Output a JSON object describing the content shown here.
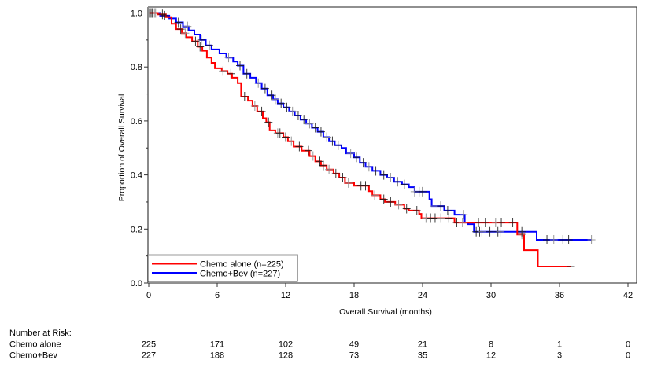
{
  "chart_data": {
    "type": "line",
    "subtype": "kaplan-meier",
    "title": "",
    "xlabel": "Overall Survival (months)",
    "ylabel": "Proportion of Overall Survival",
    "xlim": [
      0,
      42.8
    ],
    "ylim": [
      0,
      1.02
    ],
    "xticks": [
      0,
      6,
      12,
      18,
      24,
      30,
      36,
      42
    ],
    "xtick_labels": [
      "0",
      "6",
      "12",
      "18",
      "24",
      "30",
      "36",
      "42"
    ],
    "yticks": [
      0,
      0.2,
      0.4,
      0.6,
      0.8,
      1.0
    ],
    "ytick_labels": [
      "0.0",
      "0.2",
      "0.4",
      "0.6",
      "0.8",
      "1.0"
    ],
    "yminor_ticks": [
      0.1,
      0.3,
      0.5,
      0.7,
      0.9
    ],
    "grid": false,
    "censor_marker": "+",
    "legend": {
      "placement": "bottom-left",
      "entries": [
        "Chemo alone (n=225)",
        "Chemo+Bev (n=227)"
      ]
    },
    "series": [
      {
        "name": "Chemo alone",
        "n": 225,
        "legend_label": "Chemo alone (n=225)",
        "color": "#ff0000",
        "steps": {
          "t": [
            0.8,
            1.5,
            2.0,
            2.4,
            2.9,
            3.3,
            3.8,
            4.3,
            4.7,
            5.1,
            5.5,
            5.8,
            6.4,
            6.9,
            7.3,
            7.8,
            8.1,
            8.7,
            9.1,
            9.5,
            10.0,
            10.3,
            10.6,
            11.1,
            11.8,
            12.2,
            12.7,
            13.4,
            14.1,
            14.6,
            15.1,
            15.6,
            16.2,
            16.7,
            17.2,
            18.0,
            19.3,
            19.6,
            20.3,
            20.7,
            21.6,
            22.4,
            22.8,
            23.7,
            23.9,
            26.8,
            32.3,
            32.9,
            34.1
          ],
          "s": [
            0.995,
            0.985,
            0.96,
            0.94,
            0.925,
            0.91,
            0.895,
            0.875,
            0.86,
            0.835,
            0.815,
            0.795,
            0.785,
            0.775,
            0.76,
            0.74,
            0.69,
            0.675,
            0.655,
            0.635,
            0.61,
            0.595,
            0.565,
            0.555,
            0.54,
            0.525,
            0.505,
            0.49,
            0.47,
            0.45,
            0.435,
            0.42,
            0.405,
            0.39,
            0.37,
            0.36,
            0.34,
            0.325,
            0.31,
            0.3,
            0.29,
            0.275,
            0.268,
            0.256,
            0.24,
            0.224,
            0.18,
            0.122,
            0.061
          ]
        },
        "censored_t": [
          0.05,
          0.1,
          0.3,
          0.6,
          1.2,
          2.8,
          3.2,
          4.1,
          4.5,
          6.5,
          7.2,
          8.4,
          9.3,
          9.9,
          10.5,
          11.3,
          11.5,
          12.0,
          12.5,
          13.2,
          14.0,
          14.4,
          15.0,
          15.3,
          15.8,
          16.4,
          17.0,
          17.5,
          18.6,
          19.0,
          19.8,
          20.6,
          21.2,
          21.9,
          22.6,
          23.5,
          24.3,
          24.7,
          25.1,
          25.6,
          26.3,
          27.0,
          27.5,
          28.9,
          29.5,
          30.4,
          30.9,
          31.9,
          32.7,
          37.0
        ],
        "last_followup": 37.0
      },
      {
        "name": "Chemo+Bev",
        "n": 227,
        "legend_label": "Chemo+Bev (n=227)",
        "color": "#0000ff",
        "steps": {
          "t": [
            1.0,
            1.8,
            2.4,
            3.0,
            3.5,
            4.0,
            4.5,
            5.0,
            5.5,
            6.2,
            6.8,
            7.4,
            7.8,
            8.3,
            8.9,
            9.4,
            9.9,
            10.4,
            10.9,
            11.3,
            11.8,
            12.3,
            12.8,
            13.3,
            13.8,
            14.3,
            14.8,
            15.3,
            15.8,
            16.3,
            16.9,
            17.3,
            18.0,
            18.5,
            19.0,
            19.6,
            20.3,
            20.9,
            21.5,
            22.2,
            22.8,
            23.3,
            24.6,
            24.8,
            25.9,
            26.8,
            27.7,
            28.0,
            28.5,
            34.0
          ],
          "s": [
            0.99,
            0.98,
            0.965,
            0.95,
            0.935,
            0.92,
            0.9,
            0.88,
            0.865,
            0.85,
            0.835,
            0.82,
            0.805,
            0.775,
            0.76,
            0.74,
            0.72,
            0.695,
            0.68,
            0.665,
            0.65,
            0.635,
            0.62,
            0.605,
            0.59,
            0.575,
            0.56,
            0.54,
            0.525,
            0.51,
            0.5,
            0.48,
            0.465,
            0.445,
            0.43,
            0.415,
            0.4,
            0.39,
            0.375,
            0.365,
            0.355,
            0.338,
            0.31,
            0.285,
            0.268,
            0.253,
            0.224,
            0.218,
            0.19,
            0.16
          ]
        },
        "censored_t": [
          0.05,
          0.1,
          0.2,
          0.5,
          1.4,
          2.6,
          3.4,
          4.6,
          5.3,
          7.0,
          8.0,
          8.6,
          9.6,
          10.2,
          10.8,
          11.1,
          11.6,
          12.1,
          12.6,
          13.1,
          13.6,
          14.1,
          14.6,
          15.1,
          15.6,
          16.1,
          16.6,
          17.7,
          18.2,
          18.8,
          19.3,
          19.9,
          20.6,
          21.2,
          21.8,
          22.4,
          23.3,
          23.7,
          24.0,
          25.0,
          25.6,
          26.2,
          27.6,
          28.7,
          29.0,
          29.2,
          29.9,
          30.6,
          30.8,
          32.7,
          34.9,
          35.5,
          36.3,
          36.8,
          38.8
        ],
        "last_followup": 38.8
      }
    ]
  },
  "risk_table": {
    "title": "Number at Risk:",
    "times": [
      0,
      6,
      12,
      18,
      24,
      30,
      36,
      42
    ],
    "rows": [
      {
        "label": "Chemo alone",
        "color": "#ff0000",
        "counts": [
          "225",
          "171",
          "102",
          "49",
          "21",
          "8",
          "1",
          "0"
        ]
      },
      {
        "label": "Chemo+Bev",
        "color": "#3333ff",
        "counts": [
          "227",
          "188",
          "128",
          "73",
          "35",
          "12",
          "3",
          "0"
        ]
      }
    ]
  }
}
